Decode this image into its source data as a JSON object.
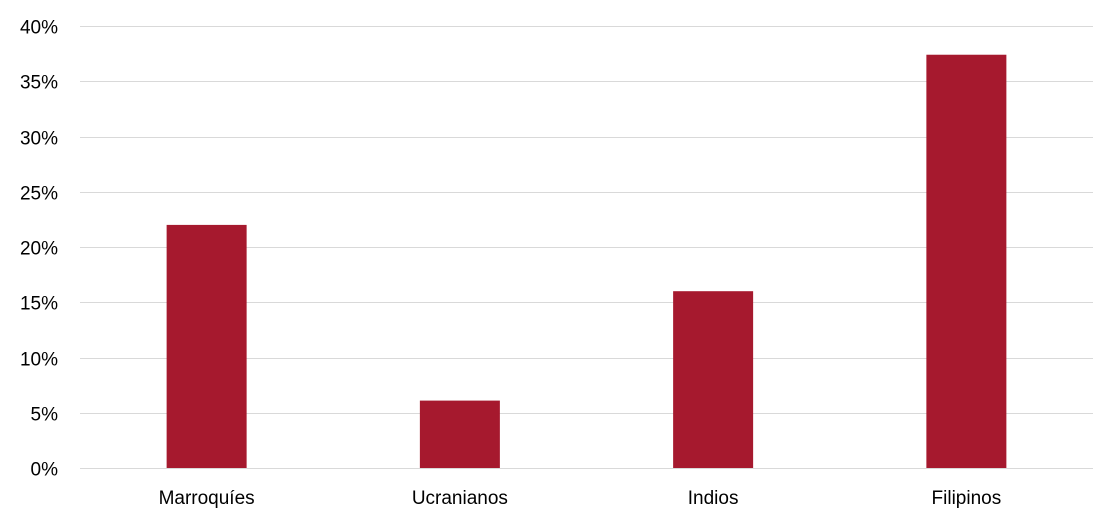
{
  "chart_data": {
    "type": "bar",
    "title": "",
    "xlabel": "",
    "ylabel": "",
    "categories": [
      "Marroquíes",
      "Ucranianos",
      "Indios",
      "Filipinos"
    ],
    "values": [
      22,
      6.1,
      16,
      37.4
    ],
    "ylim": [
      0,
      40
    ],
    "yticks": [
      0,
      5,
      10,
      15,
      20,
      25,
      30,
      35,
      40
    ],
    "ytick_labels": [
      "0%",
      "5%",
      "10%",
      "15%",
      "20%",
      "25%",
      "30%",
      "35%",
      "40%"
    ],
    "grid": true,
    "legend": "none",
    "bar_color": "#A6192E",
    "grid_color": "#D9D9D9"
  }
}
